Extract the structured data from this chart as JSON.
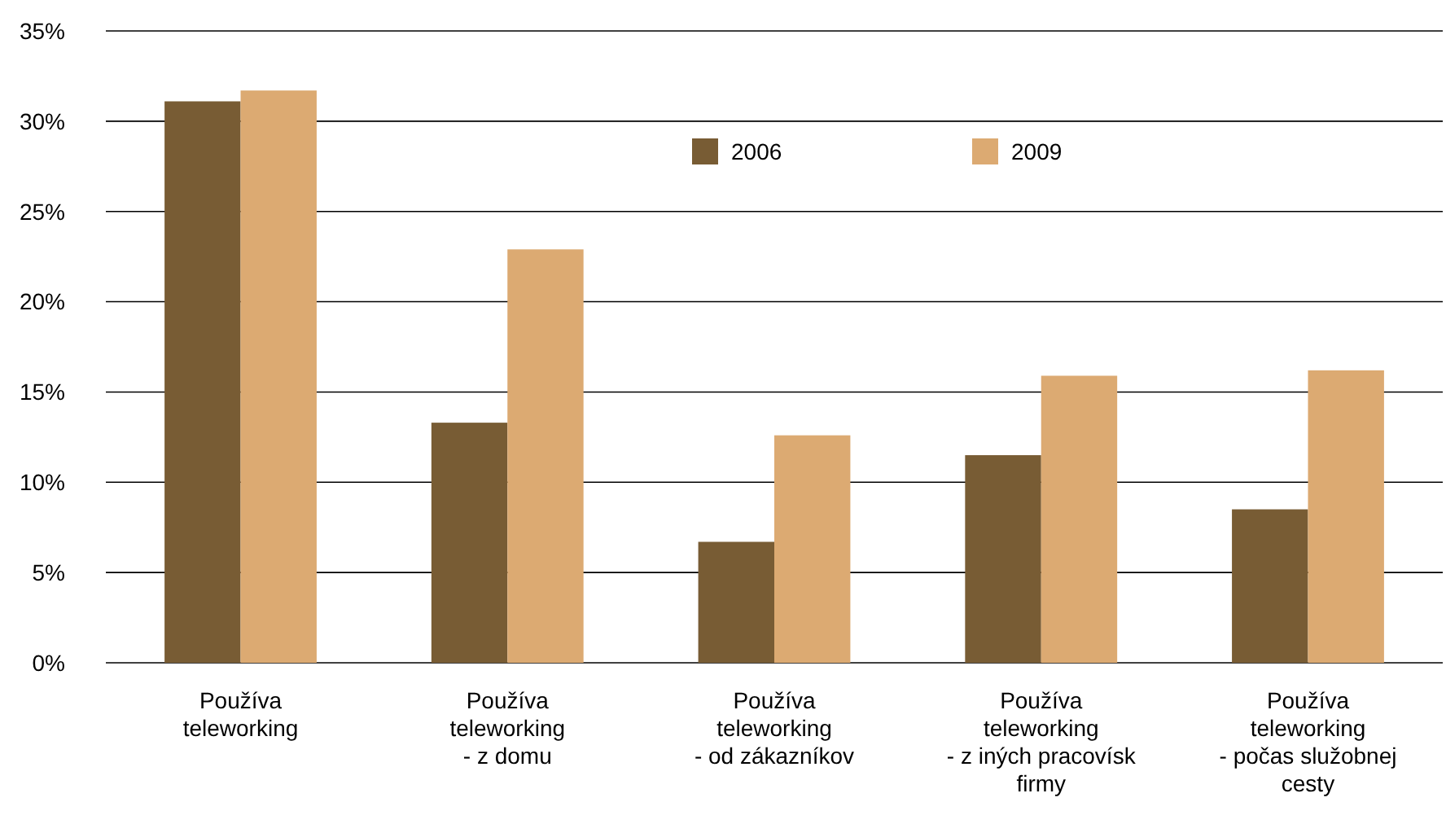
{
  "chart_data": {
    "type": "bar",
    "categories": [
      "Používa\nteleworking",
      "Používa\nteleworking\n- z domu",
      "Používa\nteleworking\n- od zákazníkov",
      "Používa\nteleworking\n- z iných pracovísk\nfirmy",
      "Používa\nteleworking\n- počas služobnej\ncesty"
    ],
    "series": [
      {
        "name": "2006",
        "color": "#785c34",
        "values": [
          31.1,
          13.3,
          6.7,
          11.5,
          8.5
        ]
      },
      {
        "name": "2009",
        "color": "#dcaa72",
        "values": [
          31.7,
          22.9,
          12.6,
          15.9,
          16.2
        ]
      }
    ],
    "ylim": [
      0,
      35
    ],
    "yticks": [
      {
        "value": 0,
        "label": "0%"
      },
      {
        "value": 5,
        "label": "5%"
      },
      {
        "value": 10,
        "label": "10%"
      },
      {
        "value": 15,
        "label": "15%"
      },
      {
        "value": 20,
        "label": "20%"
      },
      {
        "value": 25,
        "label": "25%"
      },
      {
        "value": 30,
        "label": "30%"
      },
      {
        "value": 35,
        "label": "35%"
      }
    ],
    "grid": "y",
    "legend": "top"
  }
}
